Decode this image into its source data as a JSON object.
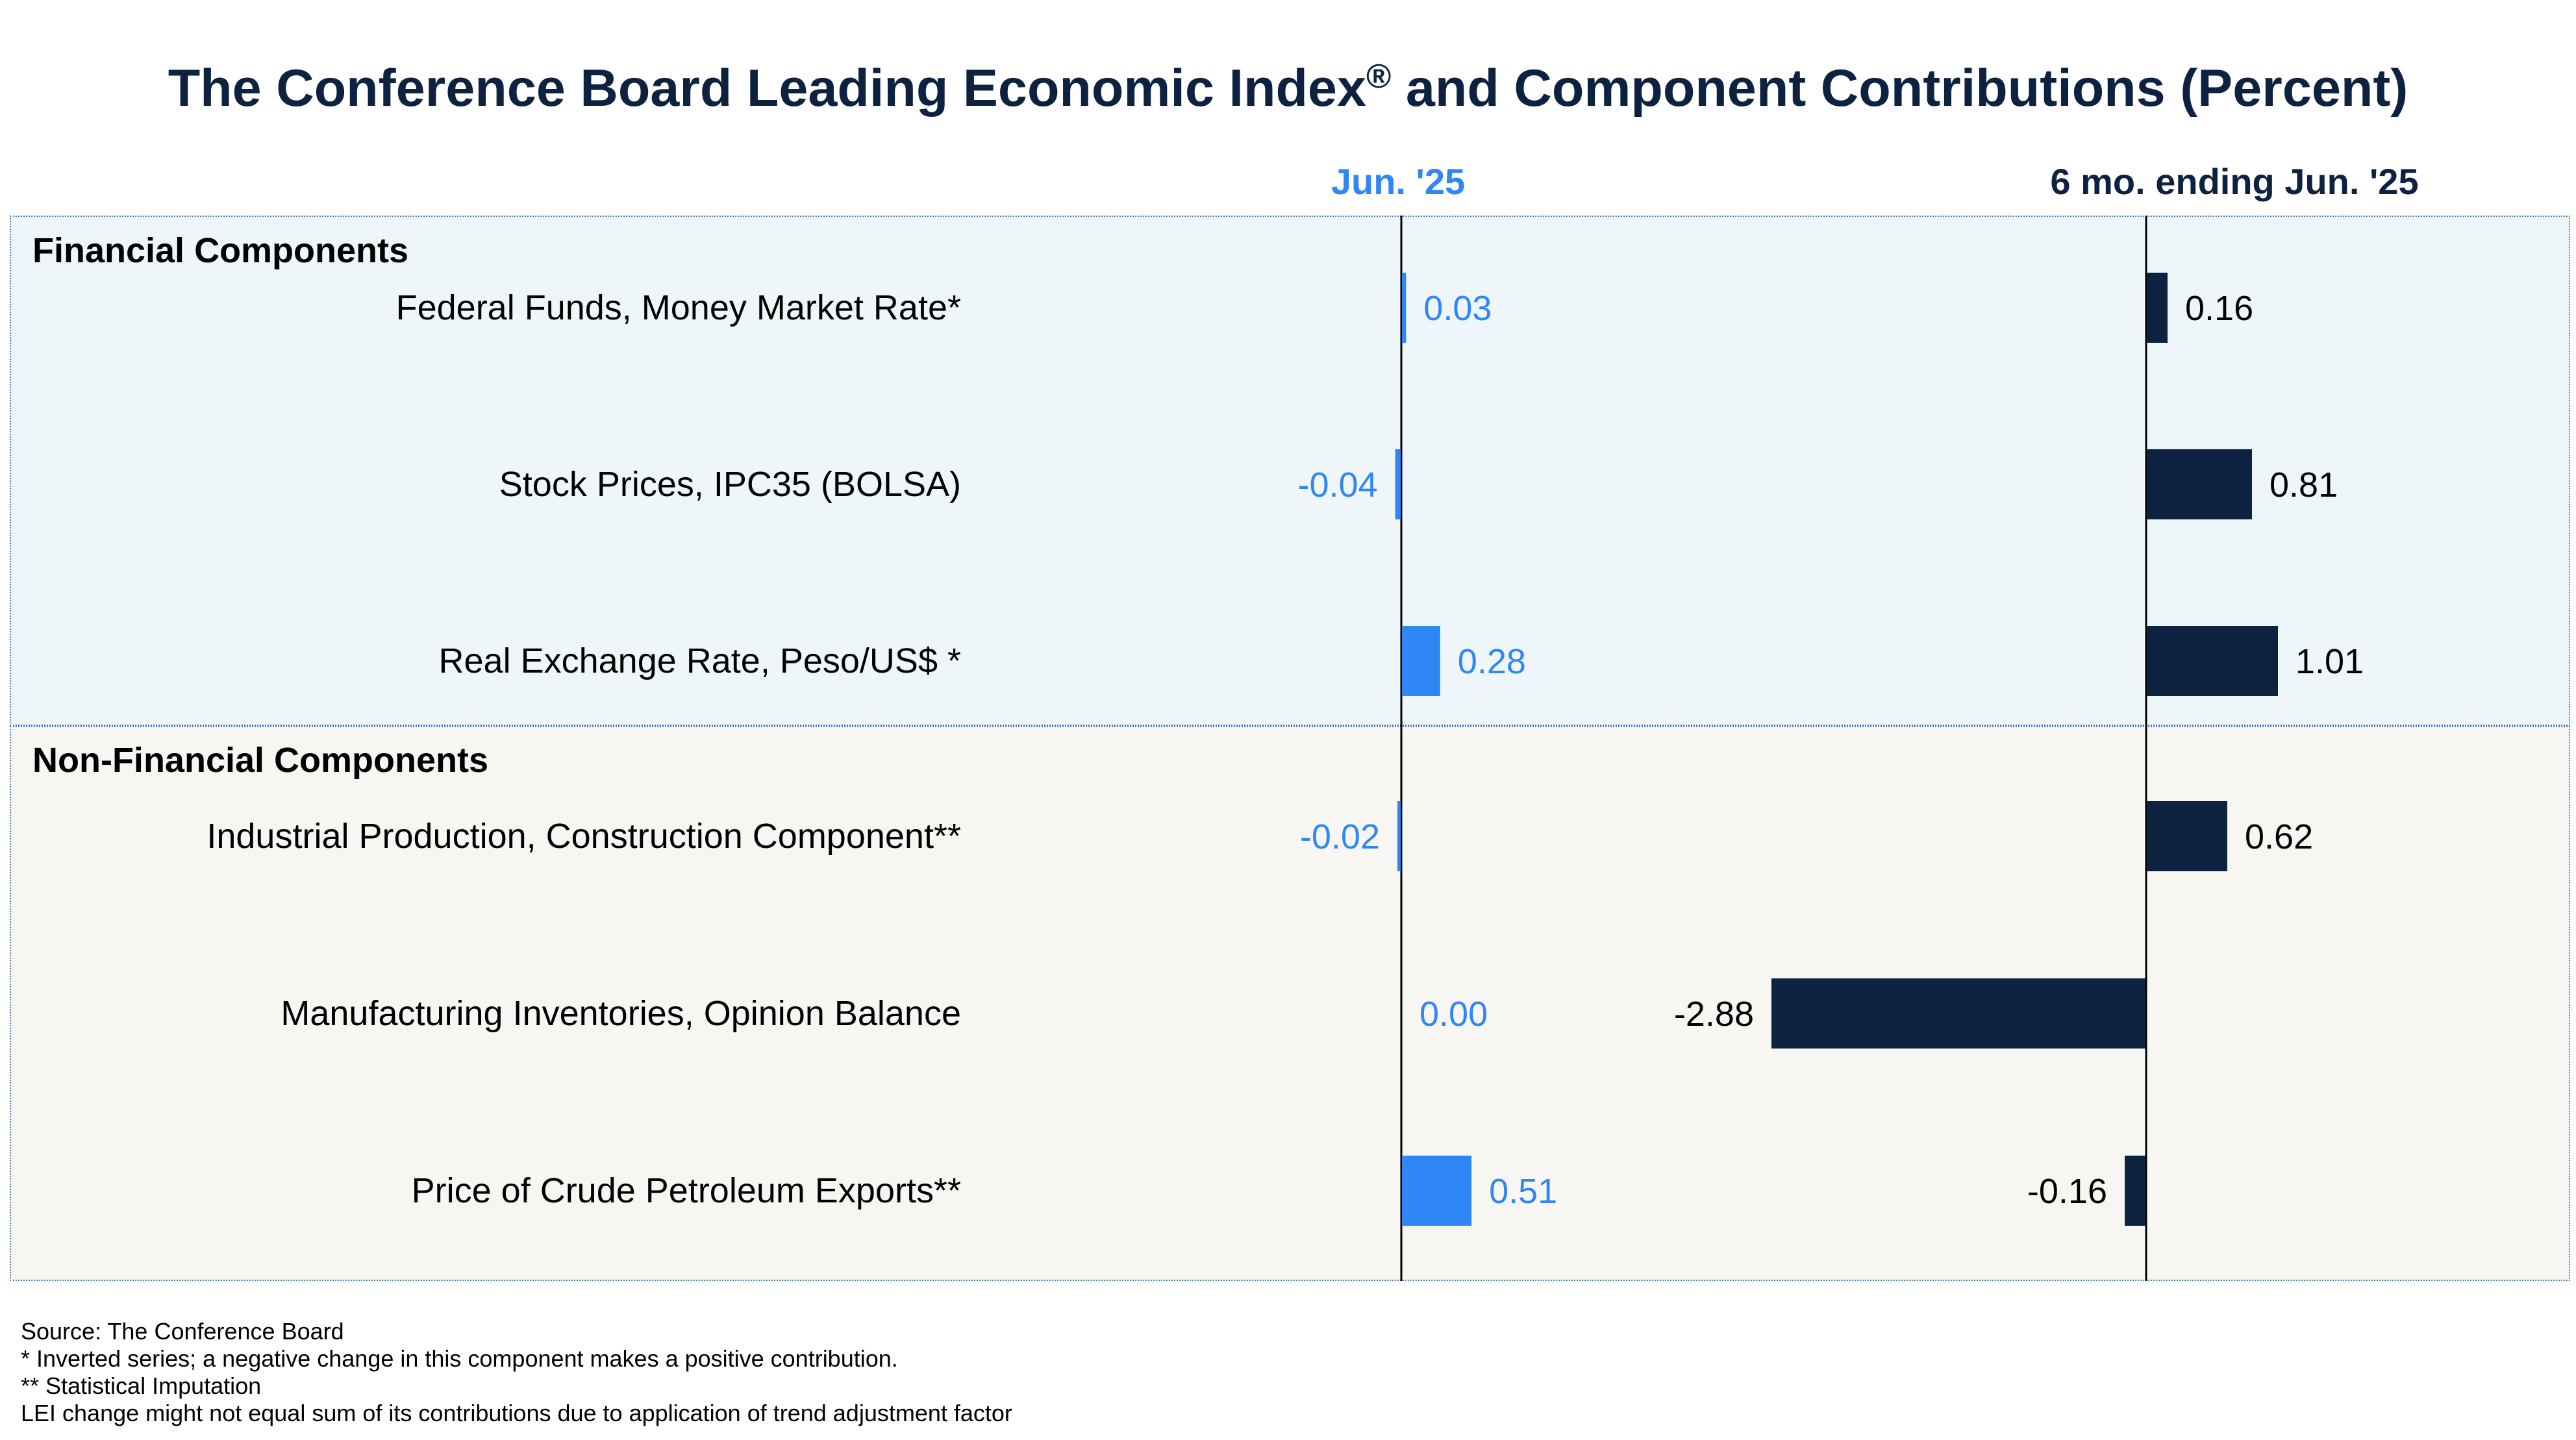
{
  "chart_data": {
    "type": "bar",
    "orientation": "horizontal",
    "title": "The Conference Board Leading Economic Index",
    "title_superscript": "®",
    "title_suffix": " and Component Contributions (Percent)",
    "columns": [
      {
        "key": "jun25",
        "label": "Jun. '25",
        "color": "#2f86f5"
      },
      {
        "key": "six_mo",
        "label": "6 mo. ending Jun. '25",
        "color": "#0d2240"
      }
    ],
    "groups": [
      {
        "name": "Financial Components",
        "rows": [
          {
            "label": "Federal Funds, Money Market Rate*",
            "jun25": 0.03,
            "six_mo": 0.16
          },
          {
            "label": "Stock Prices, IPC35 (BOLSA)",
            "jun25": -0.04,
            "six_mo": 0.81
          },
          {
            "label": "Real Exchange Rate, Peso/US$ *",
            "jun25": 0.28,
            "six_mo": 1.01
          }
        ]
      },
      {
        "name": "Non-Financial Components",
        "rows": [
          {
            "label": "Industrial Production, Construction Component**",
            "jun25": -0.02,
            "six_mo": 0.62
          },
          {
            "label": "Manufacturing Inventories, Opinion Balance",
            "jun25": 0.0,
            "six_mo": -2.88
          },
          {
            "label": "Price of Crude Petroleum Exports**",
            "jun25": 0.51,
            "six_mo": -0.16
          }
        ]
      }
    ],
    "value_format": "2dp"
  },
  "footnotes": [
    "Source: The Conference Board",
    "*  Inverted series; a negative change in this component makes a positive contribution.",
    "** Statistical Imputation",
    "LEI change might not equal sum of its contributions due to application of trend adjustment factor"
  ]
}
